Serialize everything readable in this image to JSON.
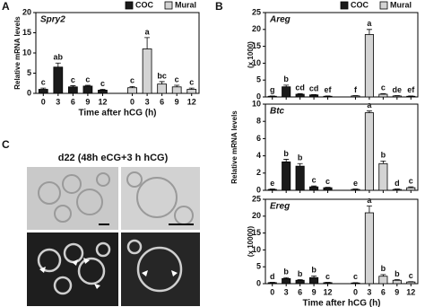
{
  "panels": [
    "A",
    "B",
    "C"
  ],
  "panel_c": {
    "title": "d22 (48h eCG+3 h hCG)"
  },
  "chart_data": [
    {
      "type": "bar",
      "title": "Spry2",
      "ylabel": "Relative mRNA levels",
      "xlabel": "Time after hCG (h)",
      "categories": [
        "0",
        "3",
        "6",
        "9",
        "12",
        "0",
        "3",
        "6",
        "9",
        "12"
      ],
      "ylim": [
        0,
        20
      ],
      "yticks": [
        0,
        5,
        10,
        15,
        20
      ],
      "series": [
        {
          "name": "COC",
          "color": "#1a1a1a",
          "values": [
            1.0,
            6.5,
            1.6,
            1.8,
            0.8,
            null,
            null,
            null,
            null,
            null
          ],
          "errors": [
            0.3,
            1.0,
            0.3,
            0.2,
            0.2,
            null,
            null,
            null,
            null,
            null
          ],
          "letters": [
            "c",
            "ab",
            "c",
            "c",
            "c",
            null,
            null,
            null,
            null,
            null
          ]
        },
        {
          "name": "Mural",
          "color": "#d4d4d4",
          "values": [
            null,
            null,
            null,
            null,
            null,
            1.4,
            11,
            2.3,
            1.6,
            1.0
          ],
          "errors": [
            null,
            null,
            null,
            null,
            null,
            0.3,
            2.8,
            0.6,
            0.4,
            0.3
          ],
          "letters": [
            null,
            null,
            null,
            null,
            null,
            "c",
            "a",
            "bc",
            "c",
            "c"
          ]
        }
      ]
    },
    {
      "type": "bar",
      "title": "Areg",
      "ylabel": "(x 1000)",
      "categories": [
        null,
        null,
        null,
        null,
        null,
        null,
        null,
        null,
        null,
        null
      ],
      "ylim": [
        0,
        25
      ],
      "yticks": [
        0,
        5,
        10,
        15,
        20,
        25
      ],
      "series": [
        {
          "name": "COC",
          "color": "#1a1a1a",
          "values": [
            0.2,
            3.0,
            0.8,
            0.6,
            0.2,
            null,
            null,
            null,
            null,
            null
          ],
          "errors": [
            0.1,
            0.5,
            0.2,
            0.1,
            0.1,
            null,
            null,
            null,
            null,
            null
          ],
          "letters": [
            "g",
            "b",
            "cd",
            "cd",
            "ef",
            null,
            null,
            null,
            null,
            null
          ]
        },
        {
          "name": "Mural",
          "color": "#d4d4d4",
          "values": [
            null,
            null,
            null,
            null,
            null,
            0.3,
            18.5,
            0.8,
            0.3,
            0.2
          ],
          "errors": [
            null,
            null,
            null,
            null,
            null,
            0.1,
            1.5,
            0.2,
            0.1,
            0.1
          ],
          "letters": [
            null,
            null,
            null,
            null,
            null,
            "f",
            "a",
            "c",
            "de",
            "ef"
          ]
        }
      ]
    },
    {
      "type": "bar",
      "title": "Btc",
      "ylabel": "Relative mRNA levels",
      "categories": [
        null,
        null,
        null,
        null,
        null,
        null,
        null,
        null,
        null,
        null
      ],
      "ylim": [
        0,
        10
      ],
      "yticks": [
        0,
        2,
        4,
        6,
        8,
        10
      ],
      "series": [
        {
          "color": "#1a1a1a",
          "values": [
            0.1,
            3.3,
            2.8,
            0.4,
            0.3,
            null,
            null,
            null,
            null,
            null
          ],
          "errors": [
            0.05,
            0.3,
            0.3,
            0.1,
            0.05,
            null,
            null,
            null,
            null,
            null
          ],
          "letters": [
            "e",
            "b",
            "b",
            "c",
            "c",
            null,
            null,
            null,
            null,
            null
          ]
        },
        {
          "color": "#d4d4d4",
          "values": [
            null,
            null,
            null,
            null,
            null,
            0.1,
            9.0,
            3.1,
            0.1,
            0.3
          ],
          "errors": [
            null,
            null,
            null,
            null,
            null,
            0.05,
            0.2,
            0.3,
            0.05,
            0.1
          ],
          "letters": [
            null,
            null,
            null,
            null,
            null,
            "e",
            "a",
            "b",
            "d",
            "c"
          ]
        }
      ]
    },
    {
      "type": "bar",
      "title": "Ereg",
      "ylabel": "(x 10000)",
      "xlabel": "Time after hCG (h)",
      "categories": [
        "0",
        "3",
        "6",
        "9",
        "12",
        "0",
        "3",
        "6",
        "9",
        "12"
      ],
      "ylim": [
        0,
        25
      ],
      "yticks": [
        0,
        5,
        10,
        15,
        20,
        25
      ],
      "series": [
        {
          "color": "#1a1a1a",
          "values": [
            0.3,
            1.5,
            1.0,
            1.8,
            0.3,
            null,
            null,
            null,
            null,
            null
          ],
          "errors": [
            0.1,
            0.3,
            0.2,
            0.5,
            0.1,
            null,
            null,
            null,
            null,
            null
          ],
          "letters": [
            "d",
            "b",
            "b",
            "b",
            "c",
            null,
            null,
            null,
            null,
            null
          ]
        },
        {
          "color": "#d4d4d4",
          "values": [
            null,
            null,
            null,
            null,
            null,
            0.2,
            21,
            2.2,
            1.0,
            0.5
          ],
          "errors": [
            null,
            null,
            null,
            null,
            null,
            0.1,
            2.0,
            0.5,
            0.2,
            0.1
          ],
          "letters": [
            null,
            null,
            null,
            null,
            null,
            "c",
            "a",
            "b",
            "b",
            "c"
          ]
        }
      ]
    }
  ]
}
